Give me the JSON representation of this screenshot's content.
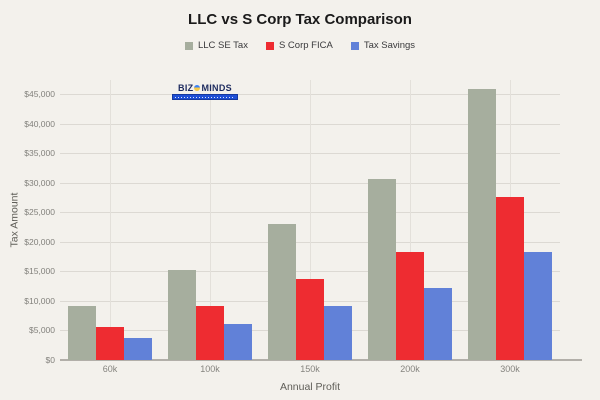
{
  "title": "LLC vs S Corp Tax Comparison",
  "logo": {
    "text_left": "BIZ",
    "text_right": "MINDS"
  },
  "chart_data": {
    "type": "bar",
    "title": "LLC vs S Corp Tax Comparison",
    "xlabel": "Annual Profit",
    "ylabel": "Tax Amount",
    "categories": [
      "60k",
      "100k",
      "150k",
      "200k",
      "300k"
    ],
    "series": [
      {
        "name": "LLC SE Tax",
        "color": "#a6ae9e",
        "values": [
          9180,
          15300,
          22950,
          30600,
          45900
        ]
      },
      {
        "name": "S Corp FICA",
        "color": "#ee2c31",
        "values": [
          5508,
          9180,
          13770,
          18360,
          27540
        ]
      },
      {
        "name": "Tax Savings",
        "color": "#6181d8",
        "values": [
          3672,
          6120,
          9180,
          12240,
          18360
        ]
      }
    ],
    "ylim": [
      0,
      45000
    ],
    "y_tick_values": [
      0,
      5000,
      10000,
      15000,
      20000,
      25000,
      30000,
      35000,
      40000,
      45000
    ],
    "y_tick_labels": [
      "$0",
      "$5,000",
      "$10,000",
      "$15,000",
      "$20,000",
      "$25,000",
      "$30,000",
      "$35,000",
      "$40,000",
      "$45,000"
    ],
    "grid": true,
    "legend_position": "top"
  },
  "colors": {
    "background": "#f3f1ec",
    "gridline": "#dcd9d3",
    "axis_line": "#b2afa9",
    "tick_text": "#82817c",
    "title_text": "#1a1a1a",
    "logo_navy": "#1c2a5e",
    "logo_ribbon_blue": "#1e4fd6"
  }
}
